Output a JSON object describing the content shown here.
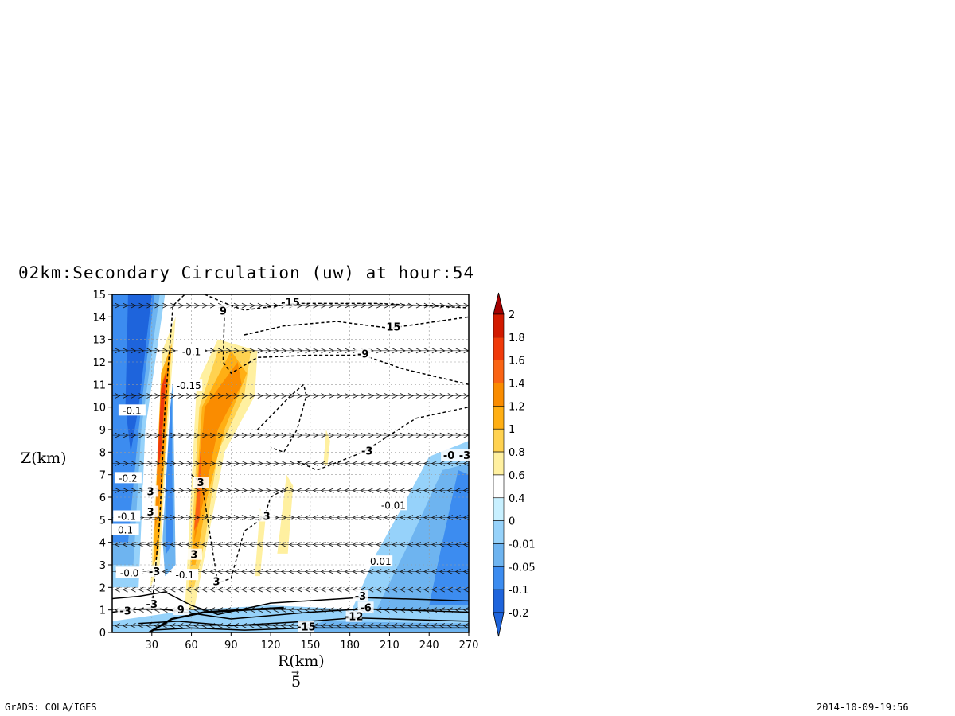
{
  "chart_data": {
    "type": "contour",
    "title": "02km:Secondary Circulation (uw) at hour:54",
    "xlabel": "R(km)",
    "ylabel": "Z(km)",
    "xlim": [
      0,
      270
    ],
    "ylim": [
      0,
      15
    ],
    "x_ticks": [
      "30",
      "60",
      "90",
      "120",
      "150",
      "180",
      "210",
      "240",
      "270"
    ],
    "y_ticks": [
      "0",
      "1",
      "2",
      "3",
      "4",
      "5",
      "6",
      "7",
      "8",
      "9",
      "10",
      "11",
      "12",
      "13",
      "14",
      "15"
    ],
    "grid": true,
    "colorbar": {
      "levels": [
        "2",
        "1.8",
        "1.6",
        "1.4",
        "1.2",
        "1",
        "0.8",
        "0.6",
        "0.4",
        "0",
        "-0.01",
        "-0.05",
        "-0.1",
        "-0.2"
      ],
      "colors": [
        "#a50000",
        "#d21a00",
        "#f03a0a",
        "#fa6414",
        "#fa8c00",
        "#ffaf14",
        "#ffd250",
        "#fff0a0",
        "#ffffff",
        "#c8f0ff",
        "#96d2fa",
        "#6eb4f0",
        "#3c8cf0",
        "#1e64dc"
      ]
    },
    "contour_labels": [
      {
        "text": "-15",
        "x": 135,
        "y": 14.6
      },
      {
        "text": "15",
        "x": 213,
        "y": 13.5
      },
      {
        "text": "9",
        "x": 84,
        "y": 14.2
      },
      {
        "text": "-9",
        "x": 190,
        "y": 12.3
      },
      {
        "text": "-3",
        "x": 193,
        "y": 8.0
      },
      {
        "text": "-0",
        "x": 255,
        "y": 7.8
      },
      {
        "text": "-3",
        "x": 267,
        "y": 7.8
      },
      {
        "text": "3",
        "x": 67,
        "y": 6.6
      },
      {
        "text": "3",
        "x": 29,
        "y": 6.2
      },
      {
        "text": "3",
        "x": 29,
        "y": 5.3
      },
      {
        "text": "3",
        "x": 117,
        "y": 5.1
      },
      {
        "text": "3",
        "x": 62,
        "y": 3.4
      },
      {
        "text": "3",
        "x": 79,
        "y": 2.2
      },
      {
        "text": "-3",
        "x": 188,
        "y": 1.55
      },
      {
        "text": "-6",
        "x": 192,
        "y": 1.05
      },
      {
        "text": "-12",
        "x": 183,
        "y": 0.65
      },
      {
        "text": "-15",
        "x": 147,
        "y": 0.2
      },
      {
        "text": "9",
        "x": 52,
        "y": 0.95
      },
      {
        "text": "-3",
        "x": 30,
        "y": 1.2
      },
      {
        "text": "-3",
        "x": 10,
        "y": 0.9
      },
      {
        "text": "-3",
        "x": 32,
        "y": 2.65
      }
    ],
    "shading_labels": [
      {
        "text": "-0.1",
        "x": 15,
        "y": 9.8
      },
      {
        "text": "-0.2",
        "x": 12,
        "y": 6.8
      },
      {
        "text": "-0.1",
        "x": 11,
        "y": 5.1
      },
      {
        "text": "0.1",
        "x": 10,
        "y": 4.5
      },
      {
        "text": "-0.0",
        "x": 13,
        "y": 2.6
      },
      {
        "text": "-0.01",
        "x": 213,
        "y": 5.6
      },
      {
        "text": "-0.01",
        "x": 202,
        "y": 3.1
      },
      {
        "text": "-0.15",
        "x": 58,
        "y": 10.9
      },
      {
        "text": "-0.1",
        "x": 60,
        "y": 12.4
      },
      {
        "text": "-0.1",
        "x": 55,
        "y": 2.5
      }
    ],
    "vector_reference": "5"
  },
  "footer": {
    "left": "GrADS: COLA/IGES",
    "right": "2014-10-09-19:56"
  }
}
